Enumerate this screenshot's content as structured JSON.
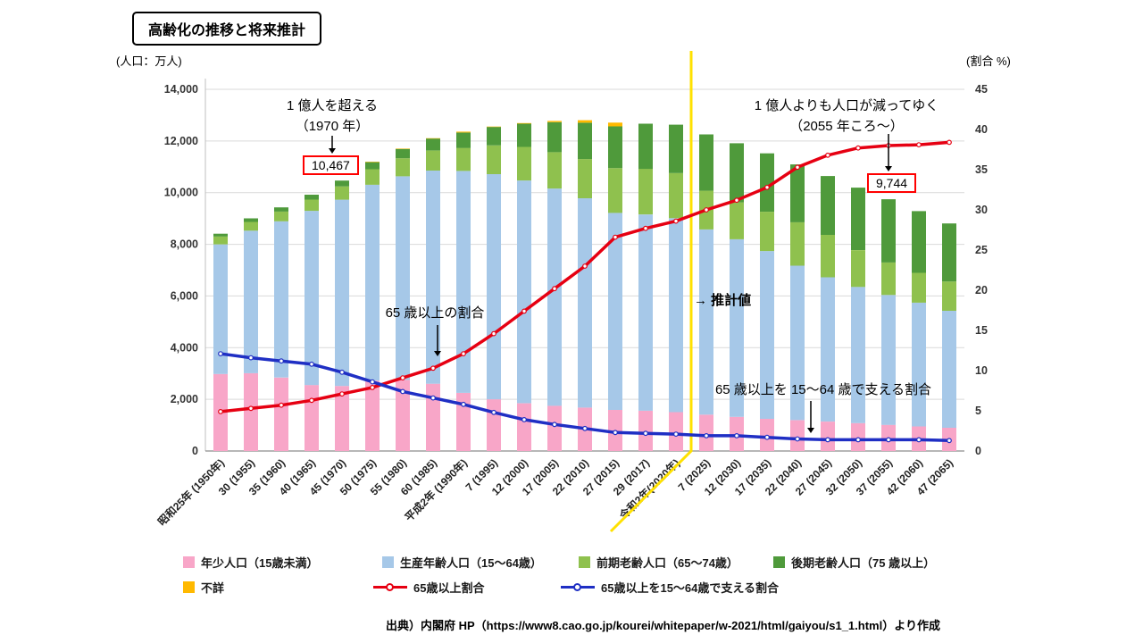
{
  "page_title": "高齢化の推移と将来推計",
  "axes": {
    "left_unit": "(人口：万人)",
    "right_unit": "(割合 %)"
  },
  "annotations": {
    "over100m_line1": "1 億人を超える",
    "over100m_line2": "（1970 年）",
    "over100m_value": "10,467",
    "decline_line1": "1 億人よりも人口が減ってゆく",
    "decline_line2": "（2055 年ころ～）",
    "decline_value": "9,744",
    "ratio65_label": "65 歳以上の割合",
    "support_label": "65 歳以上を 15～64 歳で支える割合",
    "projection_label": "→ 推計値"
  },
  "chart_data": {
    "type": "bar",
    "subtype": "stacked-bars-with-lines",
    "categories": [
      "昭和25年 (1950年)",
      "30 (1955)",
      "35 (1960)",
      "40 (1965)",
      "45 (1970)",
      "50 (1975)",
      "55 (1980)",
      "60 (1985)",
      "平成2年 (1990年)",
      "7 (1995)",
      "12 (2000)",
      "17 (2005)",
      "22 (2010)",
      "27 (2015)",
      "29 (2017)",
      "令和2年(2020年)",
      "7 (2025)",
      "12 (2030)",
      "17 (2035)",
      "22 (2040)",
      "27 (2045)",
      "32 (2050)",
      "37 (2055)",
      "42 (2060)",
      "47 (2065)"
    ],
    "bar_series": [
      {
        "name": "年少人口（15歳未満）",
        "color": "#F8A6C8",
        "values": [
          2979,
          3012,
          2843,
          2553,
          2515,
          2722,
          2751,
          2603,
          2249,
          2001,
          1847,
          1752,
          1680,
          1589,
          1559,
          1503,
          1407,
          1321,
          1246,
          1194,
          1138,
          1077,
          1012,
          951,
          898
        ]
      },
      {
        "name": "生産年齢人口（15～64歳）",
        "color": "#A6C8E8",
        "values": [
          5017,
          5517,
          6047,
          6744,
          7212,
          7581,
          7883,
          8251,
          8590,
          8716,
          8622,
          8409,
          8103,
          7629,
          7596,
          7509,
          7170,
          6875,
          6494,
          5978,
          5584,
          5275,
          5028,
          4793,
          4529
        ]
      },
      {
        "name": "前期老齢人口（65～74歳）",
        "color": "#8FC14E",
        "values": [
          309,
          338,
          376,
          434,
          516,
          602,
          699,
          776,
          892,
          1109,
          1301,
          1407,
          1517,
          1734,
          1767,
          1747,
          1497,
          1428,
          1522,
          1681,
          1643,
          1424,
          1258,
          1154,
          1133
        ]
      },
      {
        "name": "後期老齢人口（75 歳以上）",
        "color": "#4F9A3B",
        "values": [
          107,
          139,
          164,
          189,
          224,
          284,
          366,
          471,
          597,
          717,
          900,
          1160,
          1407,
          1613,
          1748,
          1872,
          2180,
          2288,
          2260,
          2239,
          2277,
          2417,
          2446,
          2387,
          2248
        ]
      },
      {
        "name": "不詳",
        "color": "#FFB900",
        "values": [
          0,
          0,
          0,
          0,
          0,
          5,
          7,
          5,
          33,
          14,
          23,
          49,
          98,
          145,
          0,
          0,
          0,
          0,
          0,
          0,
          0,
          0,
          0,
          0,
          0
        ]
      }
    ],
    "line_series": [
      {
        "name": "65歳以上割合",
        "color": "#E60012",
        "axis": "right",
        "values": [
          4.9,
          5.3,
          5.7,
          6.3,
          7.1,
          7.9,
          9.1,
          10.3,
          12.1,
          14.6,
          17.4,
          20.2,
          23.0,
          26.6,
          27.7,
          28.6,
          30.0,
          31.2,
          32.8,
          35.3,
          36.8,
          37.7,
          38.0,
          38.1,
          38.4
        ]
      },
      {
        "name": "65歳以上を15～64歳で支える割合",
        "color": "#1F2FC4",
        "axis": "right",
        "values": [
          12.1,
          11.6,
          11.2,
          10.8,
          9.8,
          8.6,
          7.4,
          6.6,
          5.8,
          4.8,
          3.9,
          3.3,
          2.8,
          2.3,
          2.2,
          2.1,
          1.9,
          1.9,
          1.7,
          1.5,
          1.4,
          1.4,
          1.4,
          1.4,
          1.3
        ]
      }
    ],
    "left_axis": {
      "min": 0,
      "max": 14000,
      "step": 2000
    },
    "right_axis": {
      "min": 0,
      "max": 45,
      "step": 5
    },
    "projection_divider_after_index": 15,
    "divider_color": "#FFE100",
    "grid": true,
    "legend_position": "bottom"
  },
  "source": "出典）内閣府 HP（https://www8.cao.go.jp/kourei/whitepaper/w-2021/html/gaiyou/s1_1.html）より作成"
}
